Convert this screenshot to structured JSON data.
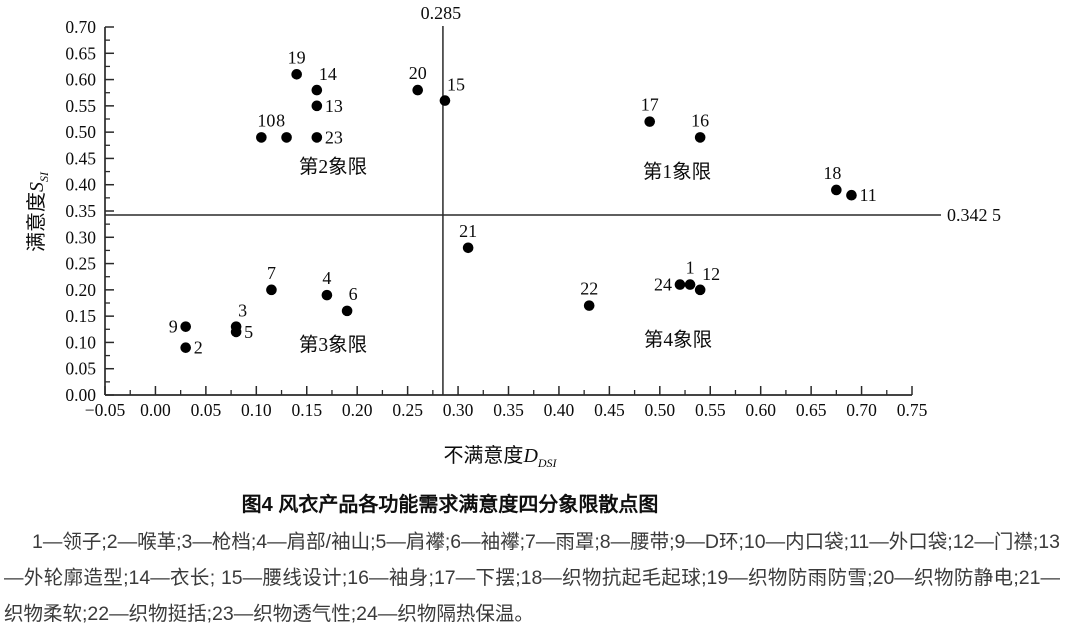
{
  "figure": {
    "caption": "图4 风衣产品各功能需求满意度四分象限散点图",
    "legend_note": "1—领子;2—喉革;3—枪档;4—肩部/袖山;5—肩襻;6—袖襻;7—雨罩;8—腰带;9—D环;10—内口袋;11—外口袋;12—门襟;13—外轮廓造型;14—衣长; 15—腰线设计;16—袖身;17—下摆;18—织物抗起毛起球;19—织物防雨防雪;20—织物防静电;21—织物柔软;22—织物挺括;23—织物透气性;24—织物隔热保温。"
  },
  "chart_data": {
    "type": "scatter",
    "title": "图4 风衣产品各功能需求满意度四分象限散点图",
    "xlabel": {
      "prefix": "不满意度",
      "symbol": "D",
      "subscript": "DSI"
    },
    "ylabel": {
      "prefix": "满意度",
      "symbol": "S",
      "subscript": "SI"
    },
    "xlim": [
      -0.05,
      0.75
    ],
    "ylim": [
      0,
      0.7
    ],
    "x_ticks": [
      "-0.05",
      "0.00",
      "0.05",
      "0.10",
      "0.15",
      "0.20",
      "0.25",
      "0.30",
      "0.35",
      "0.40",
      "0.45",
      "0.50",
      "0.55",
      "0.60",
      "0.65",
      "0.70",
      "0.75"
    ],
    "y_ticks": [
      "0.00",
      "0.05",
      "0.10",
      "0.15",
      "0.20",
      "0.25",
      "0.30",
      "0.35",
      "0.40",
      "0.45",
      "0.50",
      "0.55",
      "0.60",
      "0.65",
      "0.70"
    ],
    "grid": false,
    "reference_lines": {
      "vertical_x": 0.285,
      "vertical_label": "0.285",
      "horizontal_y": 0.3425,
      "horizontal_label": "0.342 5"
    },
    "quadrant_labels": [
      {
        "text": "第1象限",
        "x": 0.517,
        "y": 0.424
      },
      {
        "text": "第2象限",
        "x": 0.176,
        "y": 0.434
      },
      {
        "text": "第3象限",
        "x": 0.176,
        "y": 0.095
      },
      {
        "text": "第4象限",
        "x": 0.518,
        "y": 0.105
      }
    ],
    "points": [
      {
        "id": "1",
        "name": "领子",
        "x": 0.53,
        "y": 0.21,
        "label_pos": "above"
      },
      {
        "id": "2",
        "name": "喉革",
        "x": 0.03,
        "y": 0.09,
        "label_pos": "right"
      },
      {
        "id": "3",
        "name": "枪档",
        "x": 0.08,
        "y": 0.13,
        "label_pos": "above-right"
      },
      {
        "id": "4",
        "name": "肩部/袖山",
        "x": 0.17,
        "y": 0.19,
        "label_pos": "above"
      },
      {
        "id": "5",
        "name": "肩襻",
        "x": 0.08,
        "y": 0.12,
        "label_pos": "right"
      },
      {
        "id": "6",
        "name": "袖襻",
        "x": 0.19,
        "y": 0.16,
        "label_pos": "above",
        "label_dx": 6
      },
      {
        "id": "7",
        "name": "雨罩",
        "x": 0.115,
        "y": 0.2,
        "label_pos": "above"
      },
      {
        "id": "8",
        "name": "腰带",
        "x": 0.13,
        "y": 0.49,
        "label_pos": "above",
        "label_dx": -6
      },
      {
        "id": "9",
        "name": "D环",
        "x": 0.03,
        "y": 0.13,
        "label_pos": "left"
      },
      {
        "id": "10",
        "name": "内口袋",
        "x": 0.105,
        "y": 0.49,
        "label_pos": "above",
        "label_dx": 5
      },
      {
        "id": "11",
        "name": "外口袋",
        "x": 0.69,
        "y": 0.38,
        "label_pos": "right"
      },
      {
        "id": "12",
        "name": "门襟",
        "x": 0.54,
        "y": 0.2,
        "label_pos": "above-right"
      },
      {
        "id": "13",
        "name": "外轮廓造型",
        "x": 0.16,
        "y": 0.55,
        "label_pos": "right"
      },
      {
        "id": "14",
        "name": "衣长",
        "x": 0.16,
        "y": 0.58,
        "label_pos": "above-right"
      },
      {
        "id": "15",
        "name": "腰线设计",
        "x": 0.287,
        "y": 0.56,
        "label_pos": "above-right"
      },
      {
        "id": "16",
        "name": "袖身",
        "x": 0.54,
        "y": 0.49,
        "label_pos": "above"
      },
      {
        "id": "17",
        "name": "下摆",
        "x": 0.49,
        "y": 0.52,
        "label_pos": "above"
      },
      {
        "id": "18",
        "name": "织物抗起毛起球",
        "x": 0.675,
        "y": 0.39,
        "label_pos": "above",
        "label_dx": -4
      },
      {
        "id": "19",
        "name": "织物防雨防雪",
        "x": 0.14,
        "y": 0.61,
        "label_pos": "above"
      },
      {
        "id": "20",
        "name": "织物防静电",
        "x": 0.26,
        "y": 0.58,
        "label_pos": "above"
      },
      {
        "id": "21",
        "name": "织物柔软",
        "x": 0.31,
        "y": 0.28,
        "label_pos": "above"
      },
      {
        "id": "22",
        "name": "织物挺括",
        "x": 0.43,
        "y": 0.17,
        "label_pos": "above"
      },
      {
        "id": "23",
        "name": "织物透气性",
        "x": 0.16,
        "y": 0.49,
        "label_pos": "right"
      },
      {
        "id": "24",
        "name": "织物隔热保温",
        "x": 0.52,
        "y": 0.21,
        "label_pos": "left"
      }
    ],
    "legend_position": "below-caption",
    "point_color": "#000000",
    "line_color": "#2a2a2a"
  }
}
